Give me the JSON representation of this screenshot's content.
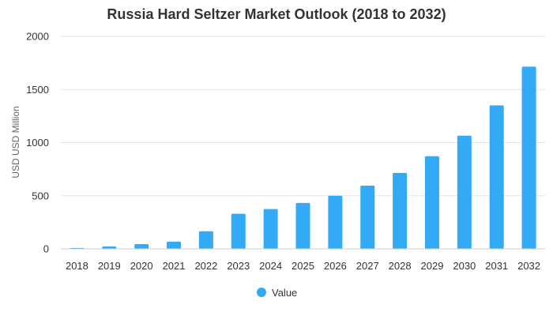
{
  "chart_data": {
    "type": "bar",
    "title": "Russia Hard Seltzer Market Outlook (2018 to 2032)",
    "xlabel": "",
    "ylabel": "USD USD Million",
    "ylim": [
      0,
      2000
    ],
    "yticks": [
      "0",
      "500",
      "1000",
      "1500",
      "2000"
    ],
    "grid": true,
    "legend_position": "bottom",
    "categories": [
      "2018",
      "2019",
      "2020",
      "2021",
      "2022",
      "2023",
      "2024",
      "2025",
      "2026",
      "2027",
      "2028",
      "2029",
      "2030",
      "2031",
      "2032"
    ],
    "series": [
      {
        "name": "Value",
        "color": "#33aaf5",
        "values": [
          8,
          22,
          45,
          68,
          165,
          330,
          375,
          432,
          500,
          595,
          715,
          872,
          1065,
          1350,
          1715
        ]
      }
    ]
  }
}
